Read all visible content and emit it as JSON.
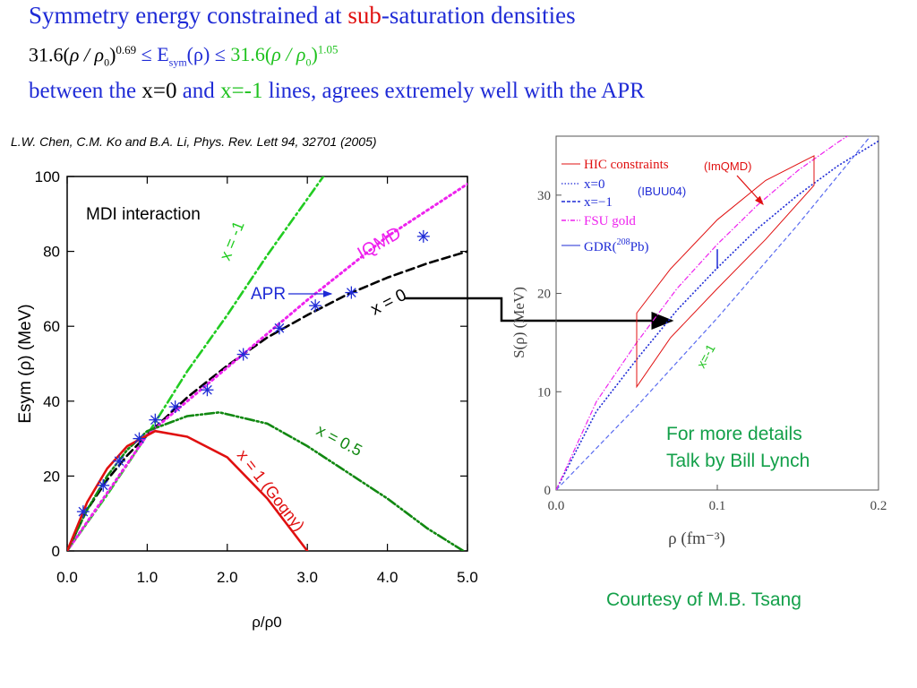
{
  "slide": {
    "title_part1": "Symmetry energy constrained at ",
    "title_part2": "sub",
    "title_part3": "-saturation densities",
    "formula_lhs_coef": "31.6(",
    "formula_lhs_rho": "ρ / ρ",
    "formula_sub0": "0",
    "formula_lhs_exp": "0.69",
    "formula_mid": " ≤ E",
    "formula_mid_sub": "sym",
    "formula_mid_arg": "(ρ) ≤ ",
    "formula_rhs_coef": "31.6(",
    "formula_rhs_rho": "ρ / ρ",
    "formula_rhs_exp": "1.05",
    "line3_a": "between the ",
    "line3_b": "x=0",
    "line3_c": " and ",
    "line3_d": "x=-1",
    "line3_e": " lines, agrees extremely well with the APR",
    "citation": "L.W. Chen, C.M. Ko and B.A. Li, Phys. Rev. Lett  94, 32701 (2005)",
    "more_details_1": "For more details",
    "more_details_2": "Talk by Bill Lynch",
    "courtesy": "Courtesy of M.B. Tsang"
  },
  "colors": {
    "title_blue": "#1f2bd6",
    "accent_red": "#e01010",
    "accent_green": "#1fc21f",
    "note_green": "#14a04a"
  },
  "chart_data": [
    {
      "type": "line",
      "title": "MDI interaction",
      "xlabel": "ρ/ρ0",
      "ylabel": "Esym (ρ) (MeV)",
      "xlim": [
        0,
        5
      ],
      "ylim": [
        0,
        100
      ],
      "xticks": [
        "0.0",
        "1.0",
        "2.0",
        "3.0",
        "4.0",
        "5.0"
      ],
      "yticks": [
        "0",
        "20",
        "40",
        "60",
        "80",
        "100"
      ],
      "series": [
        {
          "name": "x = -1",
          "color": "#22cc22",
          "style": "dash-dot",
          "points": [
            [
              0,
              0
            ],
            [
              0.5,
              15
            ],
            [
              1,
              31
            ],
            [
              1.5,
              48
            ],
            [
              2,
              63
            ],
            [
              2.5,
              79
            ],
            [
              3,
              94
            ],
            [
              3.2,
              100
            ]
          ]
        },
        {
          "name": "x = 0",
          "color": "#000000",
          "style": "dashed",
          "points": [
            [
              0,
              0
            ],
            [
              0.25,
              11
            ],
            [
              0.5,
              19
            ],
            [
              0.75,
              25.5
            ],
            [
              1,
              31
            ],
            [
              1.5,
              41
            ],
            [
              2,
              49.5
            ],
            [
              2.5,
              57
            ],
            [
              3,
              63
            ],
            [
              3.5,
              68.5
            ],
            [
              4,
              73
            ],
            [
              4.5,
              76.8
            ],
            [
              5,
              80
            ]
          ]
        },
        {
          "name": "IQMD",
          "color": "#ee22ee",
          "style": "dotted",
          "points": [
            [
              0,
              0
            ],
            [
              1,
              31
            ],
            [
              2,
              49
            ],
            [
              3,
              67
            ],
            [
              4,
              84
            ],
            [
              5,
              98
            ]
          ]
        },
        {
          "name": "x = 0.5",
          "color": "#118811",
          "style": "dash-dot-dot",
          "points": [
            [
              0,
              0
            ],
            [
              0.25,
              11
            ],
            [
              0.5,
              20
            ],
            [
              0.75,
              27
            ],
            [
              1,
              32
            ],
            [
              1.5,
              36
            ],
            [
              1.9,
              37
            ],
            [
              2.5,
              34
            ],
            [
              3,
              28
            ],
            [
              3.5,
              21
            ],
            [
              4,
              14
            ],
            [
              4.5,
              6
            ],
            [
              4.95,
              0
            ]
          ]
        },
        {
          "name": "x = 1 (Gogny)",
          "color": "#e01010",
          "style": "solid",
          "points": [
            [
              0,
              0
            ],
            [
              0.25,
              13
            ],
            [
              0.5,
              22
            ],
            [
              0.75,
              28
            ],
            [
              1.1,
              32
            ],
            [
              1.5,
              30.5
            ],
            [
              2,
              25
            ],
            [
              2.5,
              14
            ],
            [
              3,
              0
            ]
          ]
        }
      ],
      "apr_points": [
        [
          0.2,
          10.5
        ],
        [
          0.45,
          17.5
        ],
        [
          0.65,
          24
        ],
        [
          0.9,
          30
        ],
        [
          1.1,
          35
        ],
        [
          1.35,
          38.5
        ],
        [
          1.75,
          43
        ],
        [
          2.2,
          52.5
        ],
        [
          2.65,
          59.5
        ],
        [
          3.1,
          65.5
        ],
        [
          3.55,
          69
        ],
        [
          4.45,
          84
        ]
      ],
      "labels": {
        "apr": "APR",
        "xm1": "x = -1",
        "x0": "x = 0",
        "iqmd": "IQMD",
        "x05": "x = 0.5",
        "x1": "x = 1 (Gogny)"
      }
    },
    {
      "type": "line",
      "xlabel": "ρ (fm⁻³)",
      "ylabel": "S(ρ) (MeV)",
      "xlim": [
        0,
        0.2
      ],
      "ylim": [
        0,
        36
      ],
      "xticks": [
        "0.0",
        "0.1",
        "0.2"
      ],
      "yticks": [
        "0",
        "10",
        "20",
        "30"
      ],
      "legend": [
        "HIC constraints",
        "x=0",
        "x=−1",
        "FSU gold",
        "GDR(",
        "208",
        "Pb)"
      ],
      "annotations": {
        "imqmd": "(ImQMD)",
        "ibuu": "(IBUU04)",
        "xm1": "x=-1"
      },
      "series": [
        {
          "name": "x=0",
          "color": "#1f2bd6",
          "style": "dotted",
          "points": [
            [
              0,
              0
            ],
            [
              0.025,
              8
            ],
            [
              0.05,
              13.3
            ],
            [
              0.075,
              18.3
            ],
            [
              0.1,
              22.6
            ],
            [
              0.125,
              26.6
            ],
            [
              0.15,
              30
            ],
            [
              0.175,
              33
            ],
            [
              0.2,
              35.5
            ]
          ]
        },
        {
          "name": "x=−1",
          "color": "#5a6cf0",
          "style": "dashed",
          "points": [
            [
              0,
              0
            ],
            [
              0.05,
              8.5
            ],
            [
              0.1,
              17.5
            ],
            [
              0.15,
              27
            ],
            [
              0.2,
              37
            ]
          ]
        },
        {
          "name": "FSU gold",
          "color": "#ee22ee",
          "style": "dash-dot",
          "points": [
            [
              0,
              0
            ],
            [
              0.025,
              9
            ],
            [
              0.05,
              15
            ],
            [
              0.075,
              20.5
            ],
            [
              0.1,
              25
            ],
            [
              0.125,
              29
            ],
            [
              0.15,
              32.5
            ],
            [
              0.175,
              35.4
            ],
            [
              0.2,
              38
            ]
          ]
        }
      ],
      "hic_region": [
        [
          0.05,
          18
        ],
        [
          0.071,
          22.5
        ],
        [
          0.1,
          27.5
        ],
        [
          0.13,
          31.5
        ],
        [
          0.16,
          34
        ],
        [
          0.16,
          31
        ],
        [
          0.13,
          25.5
        ],
        [
          0.1,
          20.5
        ],
        [
          0.071,
          15.5
        ],
        [
          0.05,
          10.5
        ]
      ],
      "gdr_bar": {
        "x": 0.1,
        "y_low": 22.5,
        "y_high": 24.5
      }
    }
  ]
}
